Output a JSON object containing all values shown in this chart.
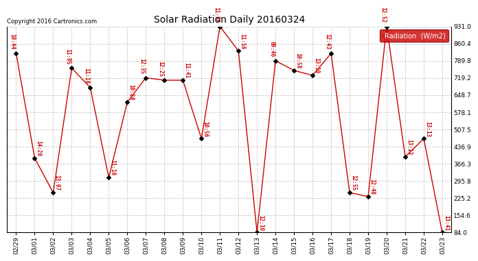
{
  "title": "Solar Radiation Daily 20160324",
  "copyright": "Copyright 2016 Cartronics.com",
  "legend_label": "Radiation  (W/m2)",
  "x_labels": [
    "02/29",
    "03/01",
    "03/02",
    "03/03",
    "03/04",
    "03/05",
    "03/06",
    "03/07",
    "03/08",
    "03/09",
    "03/10",
    "03/11",
    "03/12",
    "03/13",
    "03/14",
    "03/15",
    "03/16",
    "03/17",
    "03/18",
    "03/19",
    "03/20",
    "03/21",
    "03/22",
    "03/23"
  ],
  "y_values": [
    820,
    390,
    248,
    760,
    680,
    310,
    620,
    720,
    710,
    710,
    470,
    931,
    830,
    84,
    790,
    750,
    730,
    820,
    248,
    232,
    931,
    395,
    470,
    84
  ],
  "point_labels": [
    "10:44",
    "14:20",
    "13:07",
    "11:05",
    "11:18",
    "11:10",
    "10:24",
    "12:35",
    "12:25",
    "11:41",
    "10:56",
    "11:56",
    "11:56",
    "12:10",
    "09:46",
    "10:58",
    "13:30",
    "12:43",
    "12:55",
    "12:48",
    "12:52",
    "13:13",
    "13:13",
    "13:41"
  ],
  "yticks": [
    84.0,
    154.6,
    225.2,
    295.8,
    366.3,
    436.9,
    507.5,
    578.1,
    648.7,
    719.2,
    789.8,
    860.4,
    931.0
  ],
  "ylim_min": 84.0,
  "ylim_max": 931.0,
  "line_color": "#cc0000",
  "marker_color": "#000000",
  "label_color": "#cc0000",
  "bg_color": "#ffffff",
  "grid_color": "#bbbbbb",
  "legend_bg": "#cc0000",
  "legend_text_color": "#ffffff"
}
